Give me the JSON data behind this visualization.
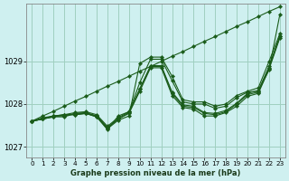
{
  "title": "Graphe pression niveau de la mer (hPa)",
  "background_color": "#cff0f0",
  "grid_color": "#a0cfc0",
  "line_color": "#1a5c1a",
  "x_ticks": [
    0,
    1,
    2,
    3,
    4,
    5,
    6,
    7,
    8,
    9,
    10,
    11,
    12,
    13,
    14,
    15,
    16,
    17,
    18,
    19,
    20,
    21,
    22,
    23
  ],
  "ylim": [
    1026.75,
    1030.35
  ],
  "yticks": [
    1027,
    1028,
    1029
  ],
  "series": [
    [
      1027.6,
      1027.65,
      1027.7,
      1027.75,
      1027.75,
      1027.78,
      1027.7,
      1027.42,
      1027.62,
      1027.72,
      1028.95,
      1029.1,
      1029.1,
      1028.65,
      1028.1,
      1028.05,
      1028.05,
      1027.95,
      1028.0,
      1028.2,
      1028.3,
      1028.38,
      1029.0,
      1029.65
    ],
    [
      1027.6,
      1027.65,
      1027.7,
      1027.7,
      1027.78,
      1027.78,
      1027.7,
      1027.4,
      1027.72,
      1027.82,
      1028.5,
      1029.05,
      1029.05,
      1028.55,
      1028.05,
      1028.0,
      1028.0,
      1027.9,
      1027.95,
      1028.15,
      1028.28,
      1028.3,
      1028.8,
      1030.1
    ],
    [
      1027.6,
      1027.65,
      1027.72,
      1027.72,
      1027.78,
      1027.8,
      1027.72,
      1027.44,
      1027.65,
      1027.78,
      1028.3,
      1028.85,
      1028.85,
      1028.2,
      1027.92,
      1027.88,
      1027.72,
      1027.72,
      1027.8,
      1027.95,
      1028.18,
      1028.25,
      1028.82,
      1029.55
    ],
    [
      1027.6,
      1027.68,
      1027.72,
      1027.75,
      1027.8,
      1027.82,
      1027.75,
      1027.48,
      1027.68,
      1027.82,
      1028.35,
      1028.88,
      1028.88,
      1028.25,
      1027.95,
      1027.92,
      1027.78,
      1027.75,
      1027.82,
      1028.0,
      1028.22,
      1028.28,
      1028.85,
      1029.58
    ],
    [
      1027.6,
      1027.65,
      1027.72,
      1027.75,
      1027.75,
      1027.78,
      1027.72,
      1027.45,
      1027.65,
      1027.8,
      1028.35,
      1028.9,
      1028.9,
      1028.28,
      1027.98,
      1027.95,
      1027.8,
      1027.78,
      1027.85,
      1028.02,
      1028.25,
      1028.32,
      1028.88,
      1029.6
    ]
  ],
  "series_linear": [
    1027.6,
    1027.72,
    1027.83,
    1027.95,
    1028.07,
    1028.18,
    1028.3,
    1028.42,
    1028.53,
    1028.65,
    1028.77,
    1028.88,
    1029.0,
    1029.12,
    1029.23,
    1029.35,
    1029.47,
    1029.58,
    1029.7,
    1029.82,
    1029.93,
    1030.05,
    1030.17,
    1030.28
  ]
}
